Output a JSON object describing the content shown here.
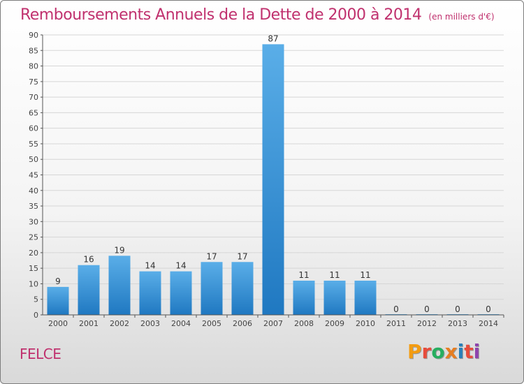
{
  "header": {
    "title": "Remboursements Annuels de la Dette de 2000 à 2014",
    "subtitle": "(en milliers d'€)"
  },
  "footer": {
    "city": "FELCE",
    "logo_text": "Proxiti",
    "logo_colors": [
      "#f39c12",
      "#e74c3c",
      "#27ae60",
      "#e67e22",
      "#2980b9",
      "#e74c3c",
      "#8e44ad"
    ]
  },
  "colors": {
    "title": "#c0316e",
    "bar_top": "#5aaee8",
    "bar_bottom": "#1f78c1",
    "grid": "#d6d6d6",
    "axis": "#555555"
  },
  "chart_data": {
    "type": "bar",
    "categories": [
      "2000",
      "2001",
      "2002",
      "2003",
      "2004",
      "2005",
      "2006",
      "2007",
      "2008",
      "2009",
      "2010",
      "2011",
      "2012",
      "2013",
      "2014"
    ],
    "values": [
      9,
      16,
      19,
      14,
      14,
      17,
      17,
      87,
      11,
      11,
      11,
      0,
      0,
      0,
      0
    ],
    "ylim": [
      0,
      90
    ],
    "yticks": [
      0,
      5,
      10,
      15,
      20,
      25,
      30,
      35,
      40,
      45,
      50,
      55,
      60,
      65,
      70,
      75,
      80,
      85,
      90
    ],
    "grid": true,
    "show_value_labels": true
  }
}
